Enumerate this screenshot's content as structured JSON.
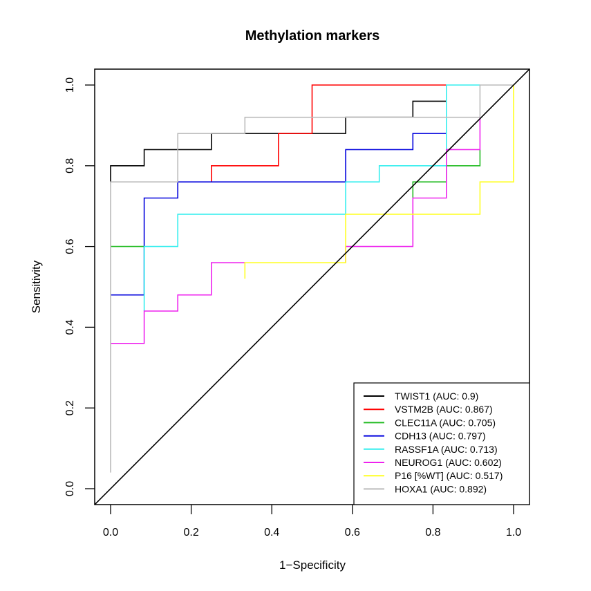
{
  "chart_data": {
    "type": "line",
    "title": "Methylation markers",
    "xlabel": "1−Specificity",
    "ylabel": "Sensitivity",
    "xlim": [
      0,
      1
    ],
    "ylim": [
      0,
      1
    ],
    "xticks": [
      "0.0",
      "0.2",
      "0.4",
      "0.6",
      "0.8",
      "1.0"
    ],
    "yticks": [
      "0.0",
      "0.2",
      "0.4",
      "0.6",
      "0.8",
      "1.0"
    ],
    "xtick_values": [
      0,
      0.2,
      0.4,
      0.6,
      0.8,
      1.0
    ],
    "ytick_values": [
      0,
      0.2,
      0.4,
      0.6,
      0.8,
      1.0
    ],
    "grid": false,
    "legend_position": "bottom-right",
    "reference_line": {
      "name": "chance-diagonal",
      "x": [
        0,
        1
      ],
      "y": [
        0,
        1
      ],
      "color": "#000000"
    },
    "series": [
      {
        "name": "TWIST1",
        "legend": "TWIST1 (AUC: 0.9)",
        "auc": 0.9,
        "color": "#000000",
        "x": [
          0,
          0,
          0.0833,
          0.0833,
          0.25,
          0.25,
          0.5833,
          0.5833,
          0.75,
          0.75,
          0.8333
        ],
        "y": [
          0.76,
          0.8,
          0.8,
          0.84,
          0.84,
          0.88,
          0.88,
          0.92,
          0.92,
          0.96,
          0.96
        ]
      },
      {
        "name": "VSTM2B",
        "legend": "VSTM2B (AUC: 0.867)",
        "auc": 0.867,
        "color": "#ff0000",
        "x": [
          0.25,
          0.25,
          0.4167,
          0.4167,
          0.5,
          0.5,
          0.8333
        ],
        "y": [
          0.76,
          0.8,
          0.8,
          0.88,
          0.88,
          1.0,
          1.0
        ]
      },
      {
        "name": "CLEC11A",
        "legend": "CLEC11A (AUC: 0.705)",
        "auc": 0.705,
        "color": "#22bb22",
        "x": [
          0,
          0.0833,
          null,
          0.75,
          0.75,
          0.8333,
          0.8333,
          0.9167,
          0.9167
        ],
        "y": [
          0.6,
          0.6,
          null,
          0.72,
          0.76,
          0.76,
          0.8,
          0.8,
          0.84
        ]
      },
      {
        "name": "CDH13",
        "legend": "CDH13 (AUC: 0.797)",
        "auc": 0.797,
        "color": "#0000dd",
        "x": [
          0,
          0.0833,
          0.0833,
          0.1667,
          0.1667,
          0.5833,
          0.5833,
          0.75,
          0.75,
          0.8333
        ],
        "y": [
          0.48,
          0.48,
          0.72,
          0.72,
          0.76,
          0.76,
          0.84,
          0.84,
          0.88,
          0.88
        ]
      },
      {
        "name": "RASSF1A",
        "legend": "RASSF1A (AUC: 0.713)",
        "auc": 0.713,
        "color": "#33eeee",
        "x": [
          0.0833,
          0.0833,
          0.1667,
          0.1667,
          0.5833,
          0.5833,
          0.6667,
          0.6667,
          0.8333,
          0.8333,
          0.9167
        ],
        "y": [
          0.44,
          0.6,
          0.6,
          0.68,
          0.68,
          0.76,
          0.76,
          0.8,
          0.8,
          1.0,
          1.0
        ]
      },
      {
        "name": "NEUROG1",
        "legend": "NEUROG1 (AUC: 0.602)",
        "auc": 0.602,
        "color": "#ee22ee",
        "x": [
          0,
          0.0833,
          0.0833,
          0.1667,
          0.1667,
          0.25,
          0.25,
          0.3333,
          null,
          0.5833,
          0.5833,
          0.75,
          0.75,
          0.8333,
          0.8333,
          0.9167,
          0.9167
        ],
        "y": [
          0.36,
          0.36,
          0.44,
          0.44,
          0.48,
          0.48,
          0.56,
          0.56,
          null,
          0.56,
          0.6,
          0.6,
          0.72,
          0.72,
          0.84,
          0.84,
          0.92
        ]
      },
      {
        "name": "P16 [%WT]",
        "legend": "P16 [%WT] (AUC: 0.517)",
        "auc": 0.517,
        "color": "#ffff22",
        "x": [
          0.3333,
          0.3333,
          0.5833,
          0.5833,
          0.9167,
          0.9167,
          1.0,
          1.0
        ],
        "y": [
          0.52,
          0.56,
          0.56,
          0.68,
          0.68,
          0.76,
          0.76,
          1.0
        ]
      },
      {
        "name": "HOXA1",
        "legend": "HOXA1 (AUC: 0.892)",
        "auc": 0.892,
        "color": "#bbbbbb",
        "x": [
          0,
          0,
          0.1667,
          0.1667,
          0.3333,
          0.3333,
          0.9167,
          0.9167,
          1.0
        ],
        "y": [
          0.04,
          0.76,
          0.76,
          0.88,
          0.88,
          0.92,
          0.92,
          1.0,
          1.0
        ]
      }
    ]
  }
}
